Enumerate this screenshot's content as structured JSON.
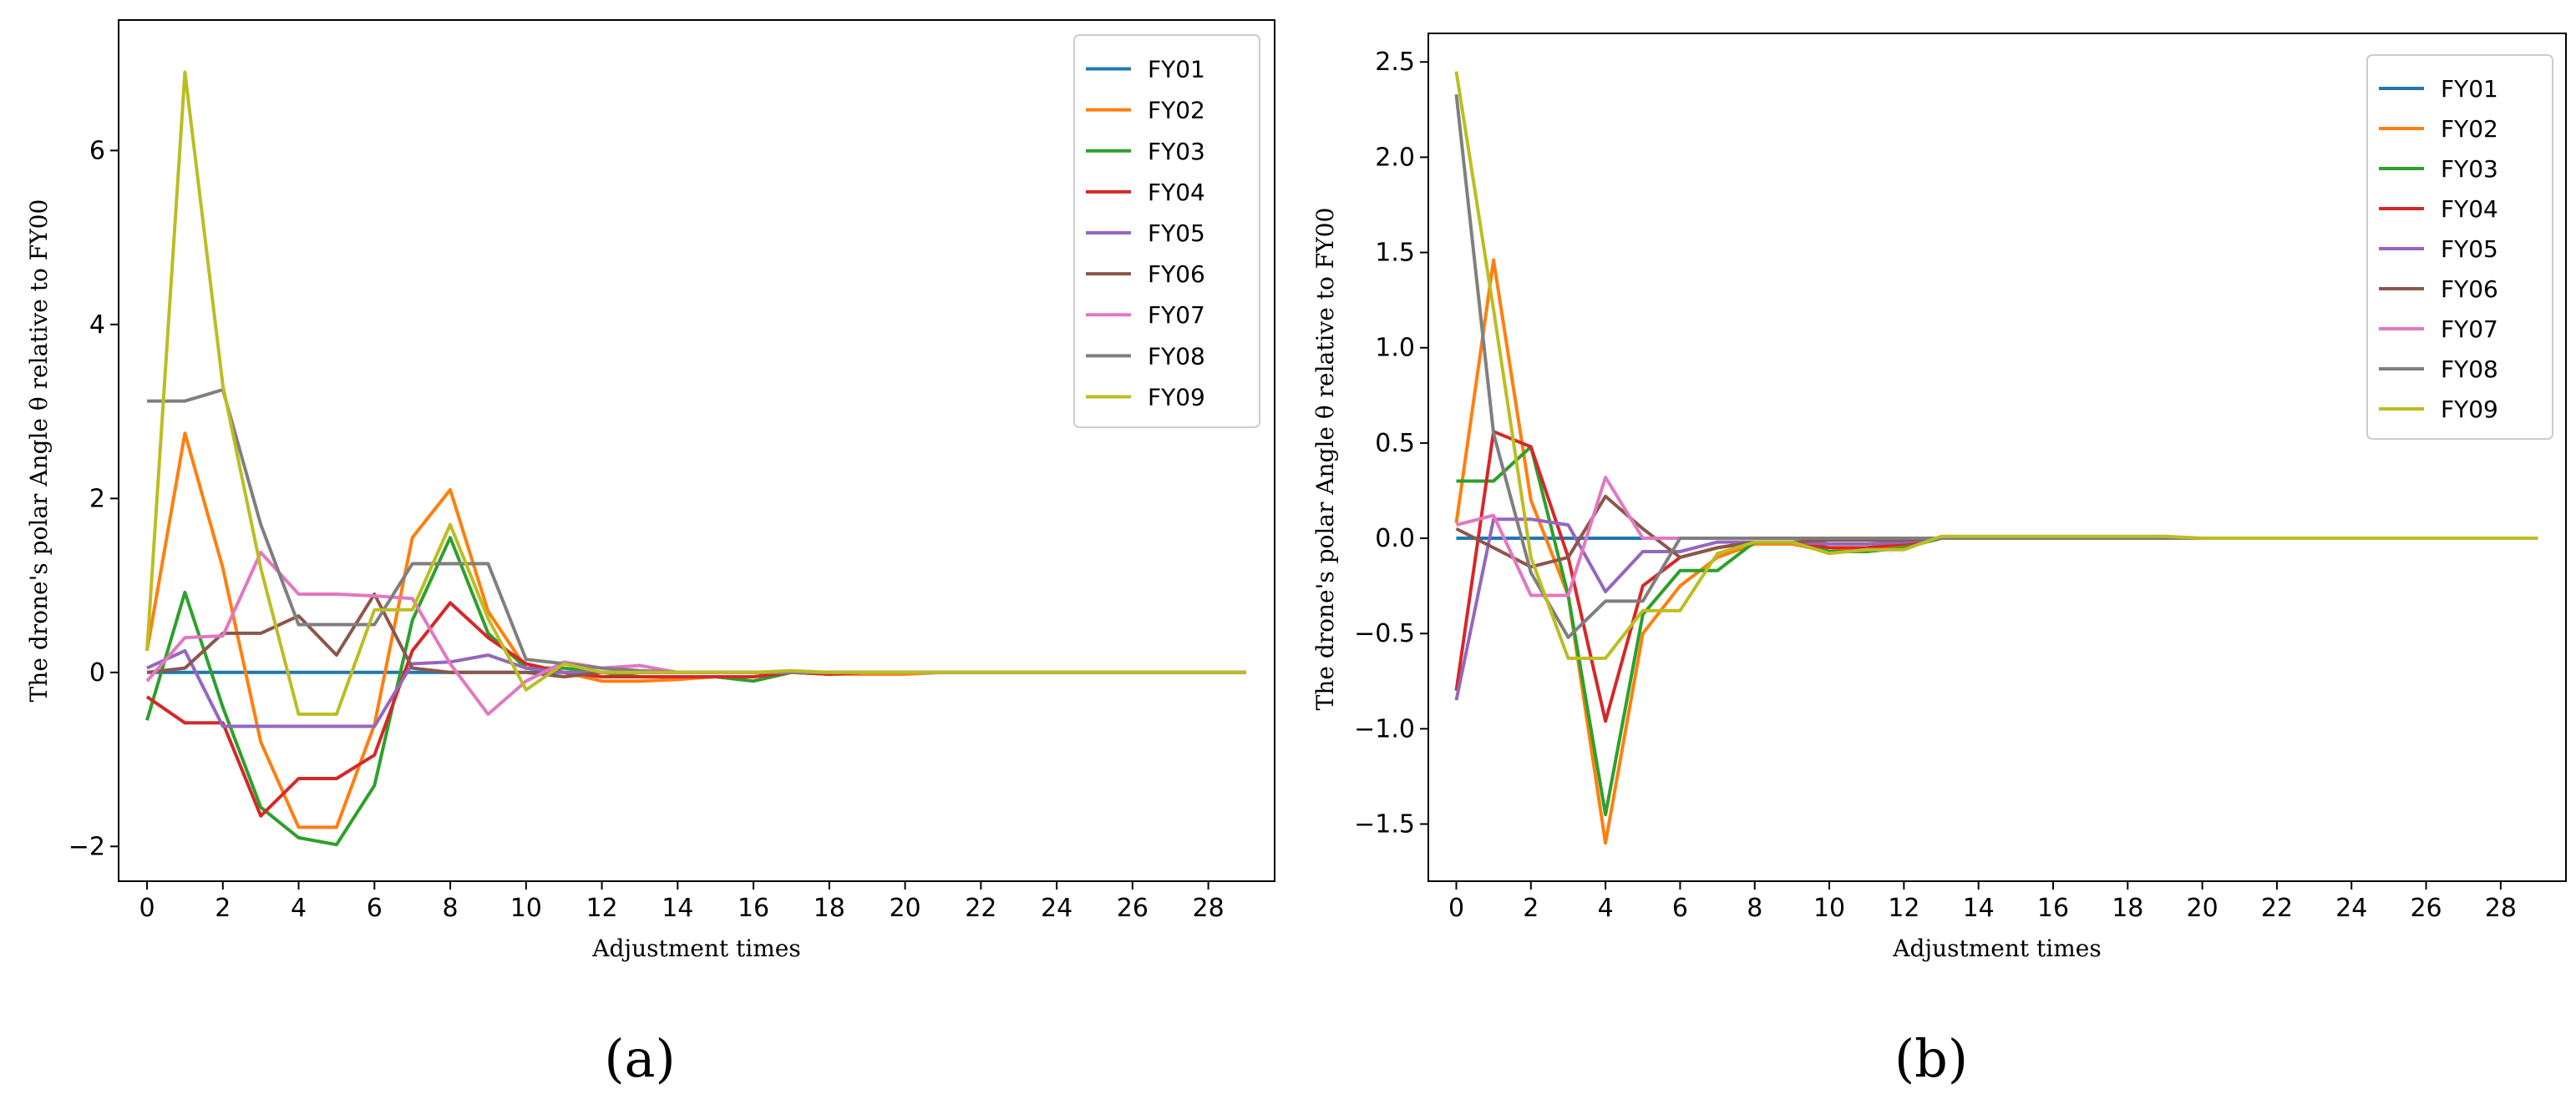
{
  "colors": {
    "FY01": "#1f77b4",
    "FY02": "#ff7f0e",
    "FY03": "#2ca02c",
    "FY04": "#d62728",
    "FY05": "#9467bd",
    "FY06": "#8c564b",
    "FY07": "#e377c2",
    "FY08": "#7f7f7f",
    "FY09": "#bcbd22"
  },
  "chart_data": [
    {
      "type": "line",
      "panel_label": "(a)",
      "title": "",
      "xlabel": "Adjustment times",
      "ylabel": "The drone's polar Angle θ relative to FY00",
      "xlim": [
        -0.75,
        29.75
      ],
      "ylim": [
        -2.4,
        7.5
      ],
      "xticks": [
        0,
        2,
        4,
        6,
        8,
        10,
        12,
        14,
        16,
        18,
        20,
        22,
        24,
        26,
        28
      ],
      "xtick_labels": [
        "0",
        "2",
        "4",
        "6",
        "8",
        "10",
        "12",
        "14",
        "16",
        "18",
        "20",
        "22",
        "24",
        "26",
        "28"
      ],
      "yticks": [
        -2,
        0,
        2,
        4,
        6
      ],
      "ytick_labels": [
        "−2",
        "0",
        "2",
        "4",
        "6"
      ],
      "legend": "top-right",
      "series": [
        {
          "name": "FY01",
          "values": [
            0,
            0,
            0,
            0,
            0,
            0,
            0,
            0,
            0,
            0,
            0,
            0,
            0,
            0,
            0,
            0,
            0,
            0,
            0,
            0,
            0,
            0,
            0,
            0,
            0,
            0,
            0,
            0,
            0,
            0
          ]
        },
        {
          "name": "FY02",
          "values": [
            0.25,
            2.75,
            1.2,
            -0.8,
            -1.78,
            -1.78,
            -0.6,
            1.55,
            2.1,
            0.7,
            0.05,
            0,
            -0.1,
            -0.1,
            -0.08,
            -0.05,
            -0.05,
            0,
            -0.02,
            -0.02,
            -0.02,
            0,
            0,
            0,
            0,
            0,
            0,
            0,
            0,
            0
          ]
        },
        {
          "name": "FY03",
          "values": [
            -0.55,
            0.92,
            -0.4,
            -1.55,
            -1.9,
            -1.98,
            -1.3,
            0.6,
            1.55,
            0.45,
            0.05,
            0.05,
            0,
            -0.05,
            -0.05,
            -0.05,
            -0.1,
            0,
            -0.02,
            0,
            0,
            0,
            0,
            0,
            0,
            0,
            0,
            0,
            0,
            0
          ]
        },
        {
          "name": "FY04",
          "values": [
            -0.28,
            -0.58,
            -0.58,
            -1.65,
            -1.22,
            -1.22,
            -0.95,
            0.25,
            0.8,
            0.4,
            0.1,
            0,
            -0.05,
            -0.05,
            -0.05,
            -0.05,
            -0.05,
            0,
            -0.02,
            0,
            0,
            0,
            0,
            0,
            0,
            0,
            0,
            0,
            0,
            0
          ]
        },
        {
          "name": "FY05",
          "values": [
            0.05,
            0.25,
            -0.62,
            -0.62,
            -0.62,
            -0.62,
            -0.62,
            0.1,
            0.12,
            0.2,
            0.05,
            0,
            0,
            0,
            0,
            0,
            0,
            0,
            0,
            0,
            0,
            0,
            0,
            0,
            0,
            0,
            0,
            0,
            0,
            0
          ]
        },
        {
          "name": "FY06",
          "values": [
            0,
            0.05,
            0.45,
            0.45,
            0.65,
            0.2,
            0.9,
            0.05,
            0,
            0,
            0,
            -0.05,
            0,
            0,
            0,
            0,
            0,
            0,
            0,
            0,
            0,
            0,
            0,
            0,
            0,
            0,
            0,
            0,
            0,
            0
          ]
        },
        {
          "name": "FY07",
          "values": [
            -0.1,
            0.4,
            0.42,
            1.38,
            0.9,
            0.9,
            0.88,
            0.85,
            0.1,
            -0.48,
            -0.1,
            0.12,
            0.05,
            0.08,
            0,
            0,
            0,
            0,
            0,
            0,
            0,
            0,
            0,
            0,
            0,
            0,
            0,
            0,
            0,
            0
          ]
        },
        {
          "name": "FY08",
          "values": [
            3.12,
            3.12,
            3.25,
            1.7,
            0.55,
            0.55,
            0.55,
            1.25,
            1.25,
            1.25,
            0.15,
            0.1,
            0.05,
            0.02,
            0,
            0,
            0,
            0,
            0,
            0,
            0,
            0,
            0,
            0,
            0,
            0,
            0,
            0,
            0,
            0
          ]
        },
        {
          "name": "FY09",
          "values": [
            0.25,
            6.9,
            3.3,
            1.2,
            -0.48,
            -0.48,
            0.72,
            0.72,
            1.7,
            0.62,
            -0.2,
            0.1,
            0,
            0,
            0,
            0,
            0,
            0.02,
            0,
            0,
            0,
            0,
            0,
            0,
            0,
            0,
            0,
            0,
            0,
            0
          ]
        }
      ]
    },
    {
      "type": "line",
      "panel_label": "(b)",
      "title": "",
      "xlabel": "Adjustment times",
      "ylabel": "The drone's polar Angle θ relative to FY00",
      "xlim": [
        -0.75,
        29.75
      ],
      "ylim": [
        -1.8,
        2.65
      ],
      "xticks": [
        0,
        2,
        4,
        6,
        8,
        10,
        12,
        14,
        16,
        18,
        20,
        22,
        24,
        26,
        28
      ],
      "xtick_labels": [
        "0",
        "2",
        "4",
        "6",
        "8",
        "10",
        "12",
        "14",
        "16",
        "18",
        "20",
        "22",
        "24",
        "26",
        "28"
      ],
      "yticks": [
        -1.5,
        -1.0,
        -0.5,
        0.0,
        0.5,
        1.0,
        1.5,
        2.0,
        2.5
      ],
      "ytick_labels": [
        "−1.5",
        "−1.0",
        "−0.5",
        "0.0",
        "0.5",
        "1.0",
        "1.5",
        "2.0",
        "2.5"
      ],
      "legend": "top-right",
      "series": [
        {
          "name": "FY01",
          "values": [
            0,
            0,
            0,
            0,
            0,
            0,
            0,
            0,
            0,
            0,
            0,
            0,
            0,
            0,
            0,
            0,
            0,
            0,
            0,
            0,
            0,
            0,
            0,
            0,
            0,
            0,
            0,
            0,
            0,
            0
          ]
        },
        {
          "name": "FY02",
          "values": [
            0.08,
            1.46,
            0.2,
            -0.3,
            -1.6,
            -0.5,
            -0.25,
            -0.1,
            -0.03,
            -0.03,
            -0.07,
            -0.05,
            -0.04,
            0,
            0,
            0,
            0,
            0,
            0,
            0,
            0,
            0,
            0,
            0,
            0,
            0,
            0,
            0,
            0,
            0
          ]
        },
        {
          "name": "FY03",
          "values": [
            0.3,
            0.3,
            0.48,
            -0.3,
            -1.45,
            -0.4,
            -0.17,
            -0.17,
            -0.02,
            -0.02,
            -0.07,
            -0.07,
            -0.05,
            0,
            0,
            0,
            0,
            0,
            0,
            0,
            0,
            0,
            0,
            0,
            0,
            0,
            0,
            0,
            0,
            0
          ]
        },
        {
          "name": "FY04",
          "values": [
            -0.8,
            0.56,
            0.48,
            -0.1,
            -0.96,
            -0.25,
            -0.1,
            -0.05,
            -0.02,
            -0.02,
            -0.05,
            -0.05,
            -0.03,
            0,
            0,
            0,
            0,
            0,
            0,
            0,
            0,
            0,
            0,
            0,
            0,
            0,
            0,
            0,
            0,
            0
          ]
        },
        {
          "name": "FY05",
          "values": [
            -0.85,
            0.1,
            0.1,
            0.07,
            -0.28,
            -0.07,
            -0.07,
            -0.02,
            -0.02,
            -0.02,
            -0.03,
            -0.03,
            -0.02,
            0,
            0,
            0,
            0,
            0,
            0,
            0,
            0,
            0,
            0,
            0,
            0,
            0,
            0,
            0,
            0,
            0
          ]
        },
        {
          "name": "FY06",
          "values": [
            0.05,
            -0.05,
            -0.15,
            -0.1,
            0.22,
            0.05,
            -0.1,
            -0.05,
            -0.02,
            -0.02,
            -0.01,
            -0.01,
            -0.01,
            0,
            0,
            0,
            0,
            0,
            0,
            0,
            0,
            0,
            0,
            0,
            0,
            0,
            0,
            0,
            0,
            0
          ]
        },
        {
          "name": "FY07",
          "values": [
            0.07,
            0.12,
            -0.3,
            -0.3,
            0.32,
            0,
            0,
            0,
            0,
            0,
            0,
            0,
            0,
            0,
            0,
            0,
            0,
            0,
            0,
            0,
            0,
            0,
            0,
            0,
            0,
            0,
            0,
            0,
            0,
            0
          ]
        },
        {
          "name": "FY08",
          "values": [
            2.33,
            0.55,
            -0.18,
            -0.52,
            -0.33,
            -0.33,
            0,
            0,
            0,
            0,
            0,
            0,
            0,
            0,
            0,
            0,
            0,
            0,
            0,
            0,
            0,
            0,
            0,
            0,
            0,
            0,
            0,
            0,
            0,
            0
          ]
        },
        {
          "name": "FY09",
          "values": [
            2.45,
            1.2,
            -0.1,
            -0.63,
            -0.63,
            -0.38,
            -0.38,
            -0.08,
            -0.02,
            -0.02,
            -0.08,
            -0.06,
            -0.06,
            0.01,
            0.01,
            0.01,
            0.01,
            0.01,
            0.01,
            0.01,
            0,
            0,
            0,
            0,
            0,
            0,
            0,
            0,
            0,
            0
          ]
        }
      ]
    }
  ]
}
